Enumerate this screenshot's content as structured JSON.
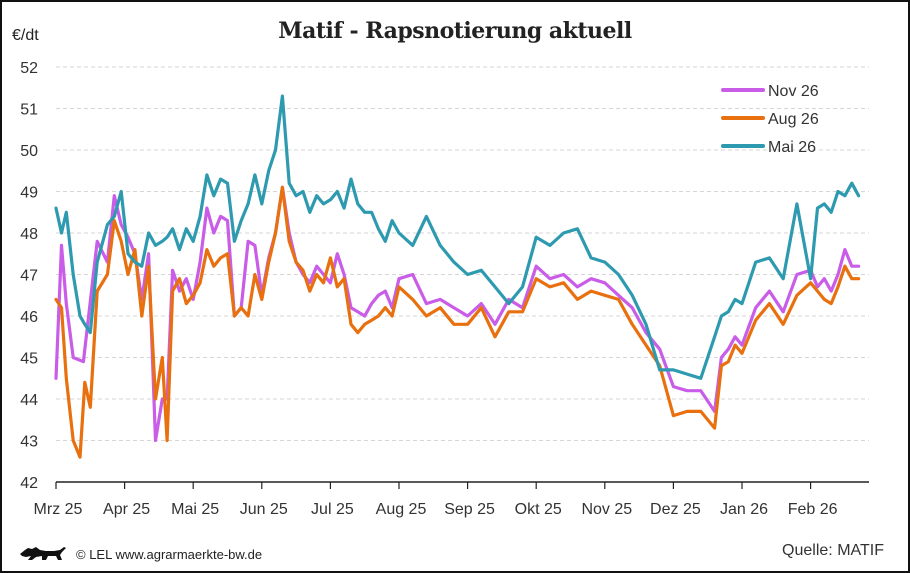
{
  "footer": {
    "copyright": "© LEL www.agrarmaerkte-bw.de",
    "source": "Quelle: MATIF",
    "logo": "lion-icon"
  },
  "chart_data": {
    "type": "line",
    "title": "Matif - Rapsnotierung aktuell",
    "ylabel": "€/dt",
    "xlabel": "",
    "ylim": [
      42,
      52
    ],
    "yticks": [
      "42",
      "43",
      "44",
      "45",
      "46",
      "47",
      "48",
      "49",
      "50",
      "51",
      "52"
    ],
    "grid": true,
    "legend_position": "top-right",
    "x_months": [
      "Mrz 25",
      "Apr 25",
      "Mai 25",
      "Jun 25",
      "Jul 25",
      "Aug 25",
      "Sep 25",
      "Okt 25",
      "Nov 25",
      "Dez 25",
      "Jan 26",
      "Feb 26"
    ],
    "x_range_months": [
      0,
      11.8
    ],
    "series": [
      {
        "name": "Nov 26",
        "color": "#c95de8",
        "x": [
          0.0,
          0.08,
          0.15,
          0.25,
          0.4,
          0.6,
          0.75,
          0.85,
          0.95,
          1.05,
          1.15,
          1.25,
          1.35,
          1.45,
          1.55,
          1.62,
          1.7,
          1.8,
          1.9,
          2.0,
          2.1,
          2.2,
          2.3,
          2.4,
          2.5,
          2.6,
          2.7,
          2.8,
          2.9,
          3.0,
          3.1,
          3.2,
          3.3,
          3.4,
          3.5,
          3.6,
          3.7,
          3.8,
          3.9,
          4.0,
          4.1,
          4.2,
          4.3,
          4.4,
          4.5,
          4.6,
          4.7,
          4.8,
          4.9,
          5.0,
          5.2,
          5.4,
          5.6,
          5.8,
          6.0,
          6.2,
          6.4,
          6.6,
          6.8,
          7.0,
          7.2,
          7.4,
          7.6,
          7.8,
          8.0,
          8.2,
          8.4,
          8.6,
          8.8,
          9.0,
          9.2,
          9.4,
          9.6,
          9.7,
          9.8,
          9.9,
          10.0,
          10.2,
          10.4,
          10.6,
          10.8,
          11.0,
          11.1,
          11.2,
          11.3,
          11.4,
          11.5,
          11.6,
          11.7
        ],
        "values": [
          44.5,
          47.7,
          46.3,
          45.0,
          44.9,
          47.8,
          47.3,
          48.9,
          48.2,
          47.9,
          47.5,
          46.4,
          47.5,
          43.0,
          44.0,
          44.0,
          47.1,
          46.6,
          46.9,
          46.4,
          47.3,
          48.6,
          48.0,
          48.4,
          48.3,
          46.0,
          46.2,
          47.8,
          47.7,
          46.5,
          47.4,
          48.0,
          49.1,
          48.0,
          47.3,
          47.0,
          46.8,
          47.2,
          47.0,
          46.8,
          47.5,
          47.0,
          46.2,
          46.1,
          46.0,
          46.3,
          46.5,
          46.6,
          46.2,
          46.9,
          47.0,
          46.3,
          46.4,
          46.2,
          46.0,
          46.3,
          45.8,
          46.4,
          46.2,
          47.2,
          46.9,
          47.0,
          46.7,
          46.9,
          46.8,
          46.5,
          46.2,
          45.6,
          45.2,
          44.3,
          44.2,
          44.2,
          43.7,
          45.0,
          45.2,
          45.5,
          45.3,
          46.2,
          46.6,
          46.1,
          47.0,
          47.1,
          46.7,
          46.9,
          46.6,
          47.0,
          47.6,
          47.2,
          47.2
        ]
      },
      {
        "name": "Aug 26",
        "color": "#e8700f",
        "x": [
          0.0,
          0.08,
          0.15,
          0.25,
          0.35,
          0.42,
          0.5,
          0.6,
          0.75,
          0.85,
          0.95,
          1.05,
          1.15,
          1.25,
          1.35,
          1.45,
          1.55,
          1.62,
          1.7,
          1.8,
          1.9,
          2.0,
          2.1,
          2.2,
          2.3,
          2.4,
          2.5,
          2.6,
          2.7,
          2.8,
          2.9,
          3.0,
          3.1,
          3.2,
          3.3,
          3.4,
          3.5,
          3.6,
          3.7,
          3.8,
          3.9,
          4.0,
          4.1,
          4.2,
          4.3,
          4.4,
          4.5,
          4.6,
          4.7,
          4.8,
          4.9,
          5.0,
          5.2,
          5.4,
          5.6,
          5.8,
          6.0,
          6.2,
          6.4,
          6.6,
          6.8,
          7.0,
          7.2,
          7.4,
          7.6,
          7.8,
          8.0,
          8.2,
          8.4,
          8.6,
          8.8,
          9.0,
          9.2,
          9.4,
          9.6,
          9.7,
          9.8,
          9.9,
          10.0,
          10.2,
          10.4,
          10.6,
          10.8,
          11.0,
          11.1,
          11.2,
          11.3,
          11.4,
          11.5,
          11.6,
          11.7
        ],
        "values": [
          46.4,
          46.2,
          44.5,
          43.0,
          42.6,
          44.4,
          43.8,
          46.6,
          47.0,
          48.3,
          47.8,
          47.0,
          47.6,
          46.0,
          47.2,
          44.0,
          45.0,
          43.0,
          46.6,
          46.9,
          46.3,
          46.5,
          46.8,
          47.6,
          47.2,
          47.4,
          47.5,
          46.0,
          46.2,
          46.0,
          47.0,
          46.4,
          47.3,
          48.0,
          49.1,
          47.8,
          47.3,
          47.1,
          46.6,
          47.0,
          46.8,
          47.4,
          46.7,
          46.9,
          45.8,
          45.6,
          45.8,
          45.9,
          46.0,
          46.2,
          46.0,
          46.7,
          46.4,
          46.0,
          46.2,
          45.8,
          45.8,
          46.2,
          45.5,
          46.1,
          46.1,
          46.9,
          46.7,
          46.8,
          46.4,
          46.6,
          46.5,
          46.4,
          45.8,
          45.3,
          44.8,
          43.6,
          43.7,
          43.7,
          43.3,
          44.8,
          44.9,
          45.3,
          45.1,
          45.9,
          46.3,
          45.8,
          46.5,
          46.8,
          46.6,
          46.4,
          46.3,
          46.7,
          47.2,
          46.9,
          46.9
        ]
      },
      {
        "name": "Mai 26",
        "color": "#2e9ab0",
        "x": [
          0.0,
          0.08,
          0.15,
          0.25,
          0.35,
          0.42,
          0.5,
          0.6,
          0.75,
          0.85,
          0.95,
          1.05,
          1.15,
          1.25,
          1.35,
          1.45,
          1.55,
          1.62,
          1.7,
          1.8,
          1.9,
          2.0,
          2.1,
          2.2,
          2.3,
          2.4,
          2.5,
          2.6,
          2.7,
          2.8,
          2.9,
          3.0,
          3.1,
          3.2,
          3.3,
          3.4,
          3.5,
          3.6,
          3.7,
          3.8,
          3.9,
          4.0,
          4.1,
          4.2,
          4.3,
          4.4,
          4.5,
          4.6,
          4.7,
          4.8,
          4.9,
          5.0,
          5.2,
          5.4,
          5.6,
          5.8,
          6.0,
          6.2,
          6.4,
          6.6,
          6.8,
          7.0,
          7.2,
          7.4,
          7.6,
          7.8,
          8.0,
          8.2,
          8.4,
          8.6,
          8.8,
          9.0,
          9.2,
          9.4,
          9.6,
          9.7,
          9.8,
          9.9,
          10.0,
          10.2,
          10.4,
          10.6,
          10.8,
          11.0,
          11.1,
          11.2,
          11.3,
          11.4,
          11.5,
          11.6,
          11.7
        ],
        "values": [
          48.6,
          48.0,
          48.5,
          47.0,
          46.0,
          45.8,
          45.6,
          47.3,
          48.2,
          48.4,
          49.0,
          47.5,
          47.3,
          47.2,
          48.0,
          47.7,
          47.8,
          47.9,
          48.1,
          47.6,
          48.1,
          47.8,
          48.4,
          49.4,
          48.9,
          49.3,
          49.2,
          47.8,
          48.3,
          48.7,
          49.4,
          48.7,
          49.5,
          50.0,
          51.3,
          49.2,
          48.9,
          49.0,
          48.5,
          48.9,
          48.7,
          48.8,
          49.0,
          48.6,
          49.3,
          48.7,
          48.5,
          48.5,
          48.1,
          47.8,
          48.3,
          48.0,
          47.7,
          48.4,
          47.7,
          47.3,
          47.0,
          47.1,
          46.7,
          46.3,
          46.7,
          47.9,
          47.7,
          48.0,
          48.1,
          47.4,
          47.3,
          47.0,
          46.5,
          45.8,
          44.7,
          44.7,
          44.6,
          44.5,
          45.5,
          46.0,
          46.1,
          46.4,
          46.3,
          47.3,
          47.4,
          46.9,
          48.7,
          46.9,
          48.6,
          48.7,
          48.5,
          49.0,
          48.9,
          49.2,
          48.9
        ]
      }
    ]
  }
}
